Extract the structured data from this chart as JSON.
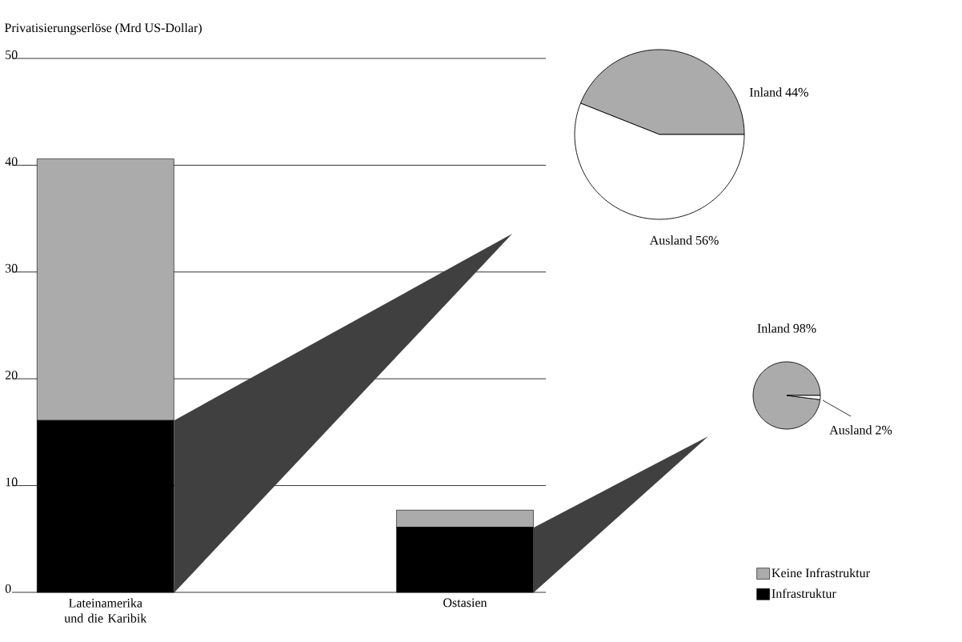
{
  "chart_data": [
    {
      "type": "bar",
      "stacked": true,
      "ylabel": "Privatisierungserlöse (Mrd US-Dollar)",
      "categories": [
        "Lateinamerika und die Karibik",
        "Ostasien"
      ],
      "series": [
        {
          "name": "Infrastruktur",
          "color": "#000000",
          "values": [
            16.1,
            6.1
          ]
        },
        {
          "name": "Keine Infrastruktur",
          "color": "#ababab",
          "values": [
            24.5,
            1.6
          ]
        }
      ],
      "ylim": [
        0,
        50
      ],
      "yticks": [
        0,
        10,
        20,
        30,
        40,
        50
      ],
      "grid": "y",
      "legend": "bottom right"
    },
    {
      "type": "pie",
      "categories": [
        "Inland",
        "Ausland"
      ],
      "values": [
        44,
        56
      ],
      "value_labels": [
        "44%",
        "56%"
      ],
      "colors": [
        "#ababab",
        "#ffffff"
      ]
    },
    {
      "type": "pie",
      "categories": [
        "Inland",
        "Ausland"
      ],
      "values": [
        98,
        2
      ],
      "value_labels": [
        "98%",
        "2%"
      ],
      "colors": [
        "#ababab",
        "#ffffff"
      ]
    }
  ]
}
